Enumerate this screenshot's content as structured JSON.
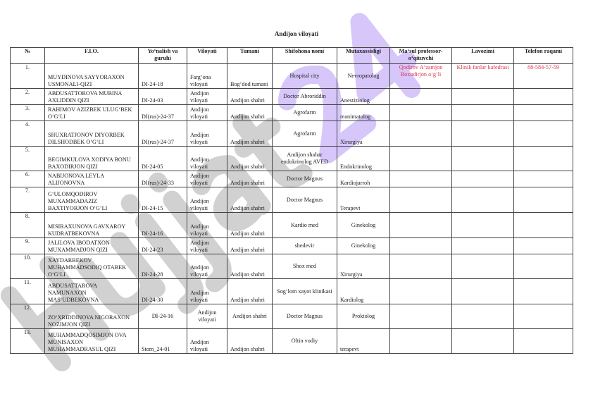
{
  "title": "Andijon viloyati",
  "watermark": "Hujjat24",
  "colors": {
    "highlight_text": "#e0364b",
    "watermark_purple": "#8a5cf0",
    "watermark_grey": "#9a9a9a"
  },
  "columns": [
    "№",
    "F.I.O.",
    "Yo‘nalish va guruhi",
    "Viloyati",
    "Tumani",
    "Shifohona nomi",
    "Mutaxassisligi",
    "Ma‘sul professor-o‘qituvchi",
    "Lavozimi",
    "Telefon raqami"
  ],
  "rows": [
    {
      "n": "1.",
      "fio": "MUYDINOVA SAYYORAXON USMONALI-QIZI",
      "group": "DI-24-18",
      "region": "Farg‘ona viloyati",
      "district": "Bog‘dod tumani",
      "hospital": "Hospital city",
      "spec": "Nevropatolog",
      "prof": "Qodirov A‘zamjon Boxodirjon o‘g‘li",
      "position": "Klinik fanlar kafedrasi",
      "phone": "88-584-57-59"
    },
    {
      "n": "2.",
      "fio": "ABDUSATTOROVA MUBINA AXLIDDIN QIZI",
      "group": "DI-24-03",
      "region": "Andijon viloyati",
      "district": "Andijon shahri",
      "hospital": "Doctor Abroriddin",
      "spec": "Anestiziolog",
      "prof": "",
      "position": "",
      "phone": ""
    },
    {
      "n": "3.",
      "fio": "RAHIMOV AZIZBEK ULUG‘BEK O‘G‘LI",
      "group": "DI(rus)-24-37",
      "region": "Andijon viloyati",
      "district": "Andijon shahri",
      "hospital": "Agrofarm",
      "spec": "reanimatolog",
      "prof": "",
      "position": "",
      "phone": ""
    },
    {
      "n": "4.",
      "fio": "SHUXRATJONOV DIYORBEK DILSHODBEK O‘G‘LI",
      "group": "DI(rus)-24-37",
      "region": "Andijon viloyati",
      "district": "Andijon shahri",
      "hospital": "Agrofarm",
      "spec": "Xirurgiya",
      "prof": "",
      "position": "",
      "phone": ""
    },
    {
      "n": "5.",
      "fio": "BEGIMKULOVA XODIYA BONU BAXODIRJON QIZI",
      "group": "DI-24-05",
      "region": "Andijon viloyati",
      "district": "Andijon shahri",
      "hospital": "Andijon shahar endokrinolog AVED",
      "spec": "Endokrinolog",
      "prof": "",
      "position": "",
      "phone": ""
    },
    {
      "n": "6.",
      "fio": "NABIJONOVA LEYLA ALIJONOVNA",
      "group": "DI(rus)-24-33",
      "region": "Andijon viloyati",
      "district": "Andijon shahri",
      "hospital": "Doctor Magnus",
      "spec": "Kardiojarroh",
      "prof": "",
      "position": "",
      "phone": ""
    },
    {
      "n": "7.",
      "fio": "G‘ULOMQODIROV MUXAMMADAZIZ BAXTIYORJON O‘G‘LI",
      "group": "DI-24-15",
      "region": "Andijon viloyati",
      "district": "Andijon shahri",
      "hospital": "Doctor Magnus",
      "spec": "Terapevt",
      "prof": "",
      "position": "",
      "phone": ""
    },
    {
      "n": "8.",
      "fio": "MISIRAXUNOVA GAVXAROY KUDRATBEKOVNA",
      "group": "DI-24-16",
      "region": "Andijon viloyati",
      "district": "Andijon shahri",
      "hospital": "Kardio med",
      "spec": "Ginekolog",
      "prof": "",
      "position": "",
      "phone": ""
    },
    {
      "n": "9.",
      "fio": "JALILOVA IBODATXON MUXAMMADJON QIZI",
      "group": "DI-24-23",
      "region": "Andijon viloyati",
      "district": "Andijon shahri",
      "hospital": "shedevir",
      "spec": "Ginekolog",
      "prof": "",
      "position": "",
      "phone": ""
    },
    {
      "n": "10.",
      "fio": "XAYDARBEKOV MUHAMMADSODIQ OTABEK O‘G‘LI",
      "group": "DI-24-28",
      "region": "Andijon viloyati",
      "district": "Andijon shahri",
      "hospital": "Shox med",
      "spec": "Xirurgiya",
      "prof": "",
      "position": "",
      "phone": ""
    },
    {
      "n": "11.",
      "fio": "ABDUSATTAROVA NAMUNAXON MAS‘UDBEKOVNA",
      "group": "DI-24-30",
      "region": "Andijon viloyati",
      "district": "Andijon shahri",
      "hospital": "Sog‘lom xayot klinikasi",
      "spec": "Kardiolog",
      "prof": "",
      "position": "",
      "phone": ""
    },
    {
      "n": "12.",
      "fio": "ZO‘XRIDDINOVA NIGORAXON NOZIMJON QIZI",
      "group": "DI-24-16",
      "region": "Andijon viloyati",
      "district": "Andijon shahri",
      "hospital": "Doctor Magnus",
      "spec": "Proktolog",
      "prof": "",
      "position": "",
      "phone": ""
    },
    {
      "n": "13.",
      "fio": "MUHAMMADQOSIMJON OVA MUNISAXON MUHAMMADRASUL QIZI",
      "group": "Stom_24-01",
      "region": "Andijon viloyati",
      "district": "Andijon shahri",
      "hospital": "Oltin vodiy",
      "spec": "terapevt",
      "prof": "",
      "position": "",
      "phone": ""
    }
  ]
}
